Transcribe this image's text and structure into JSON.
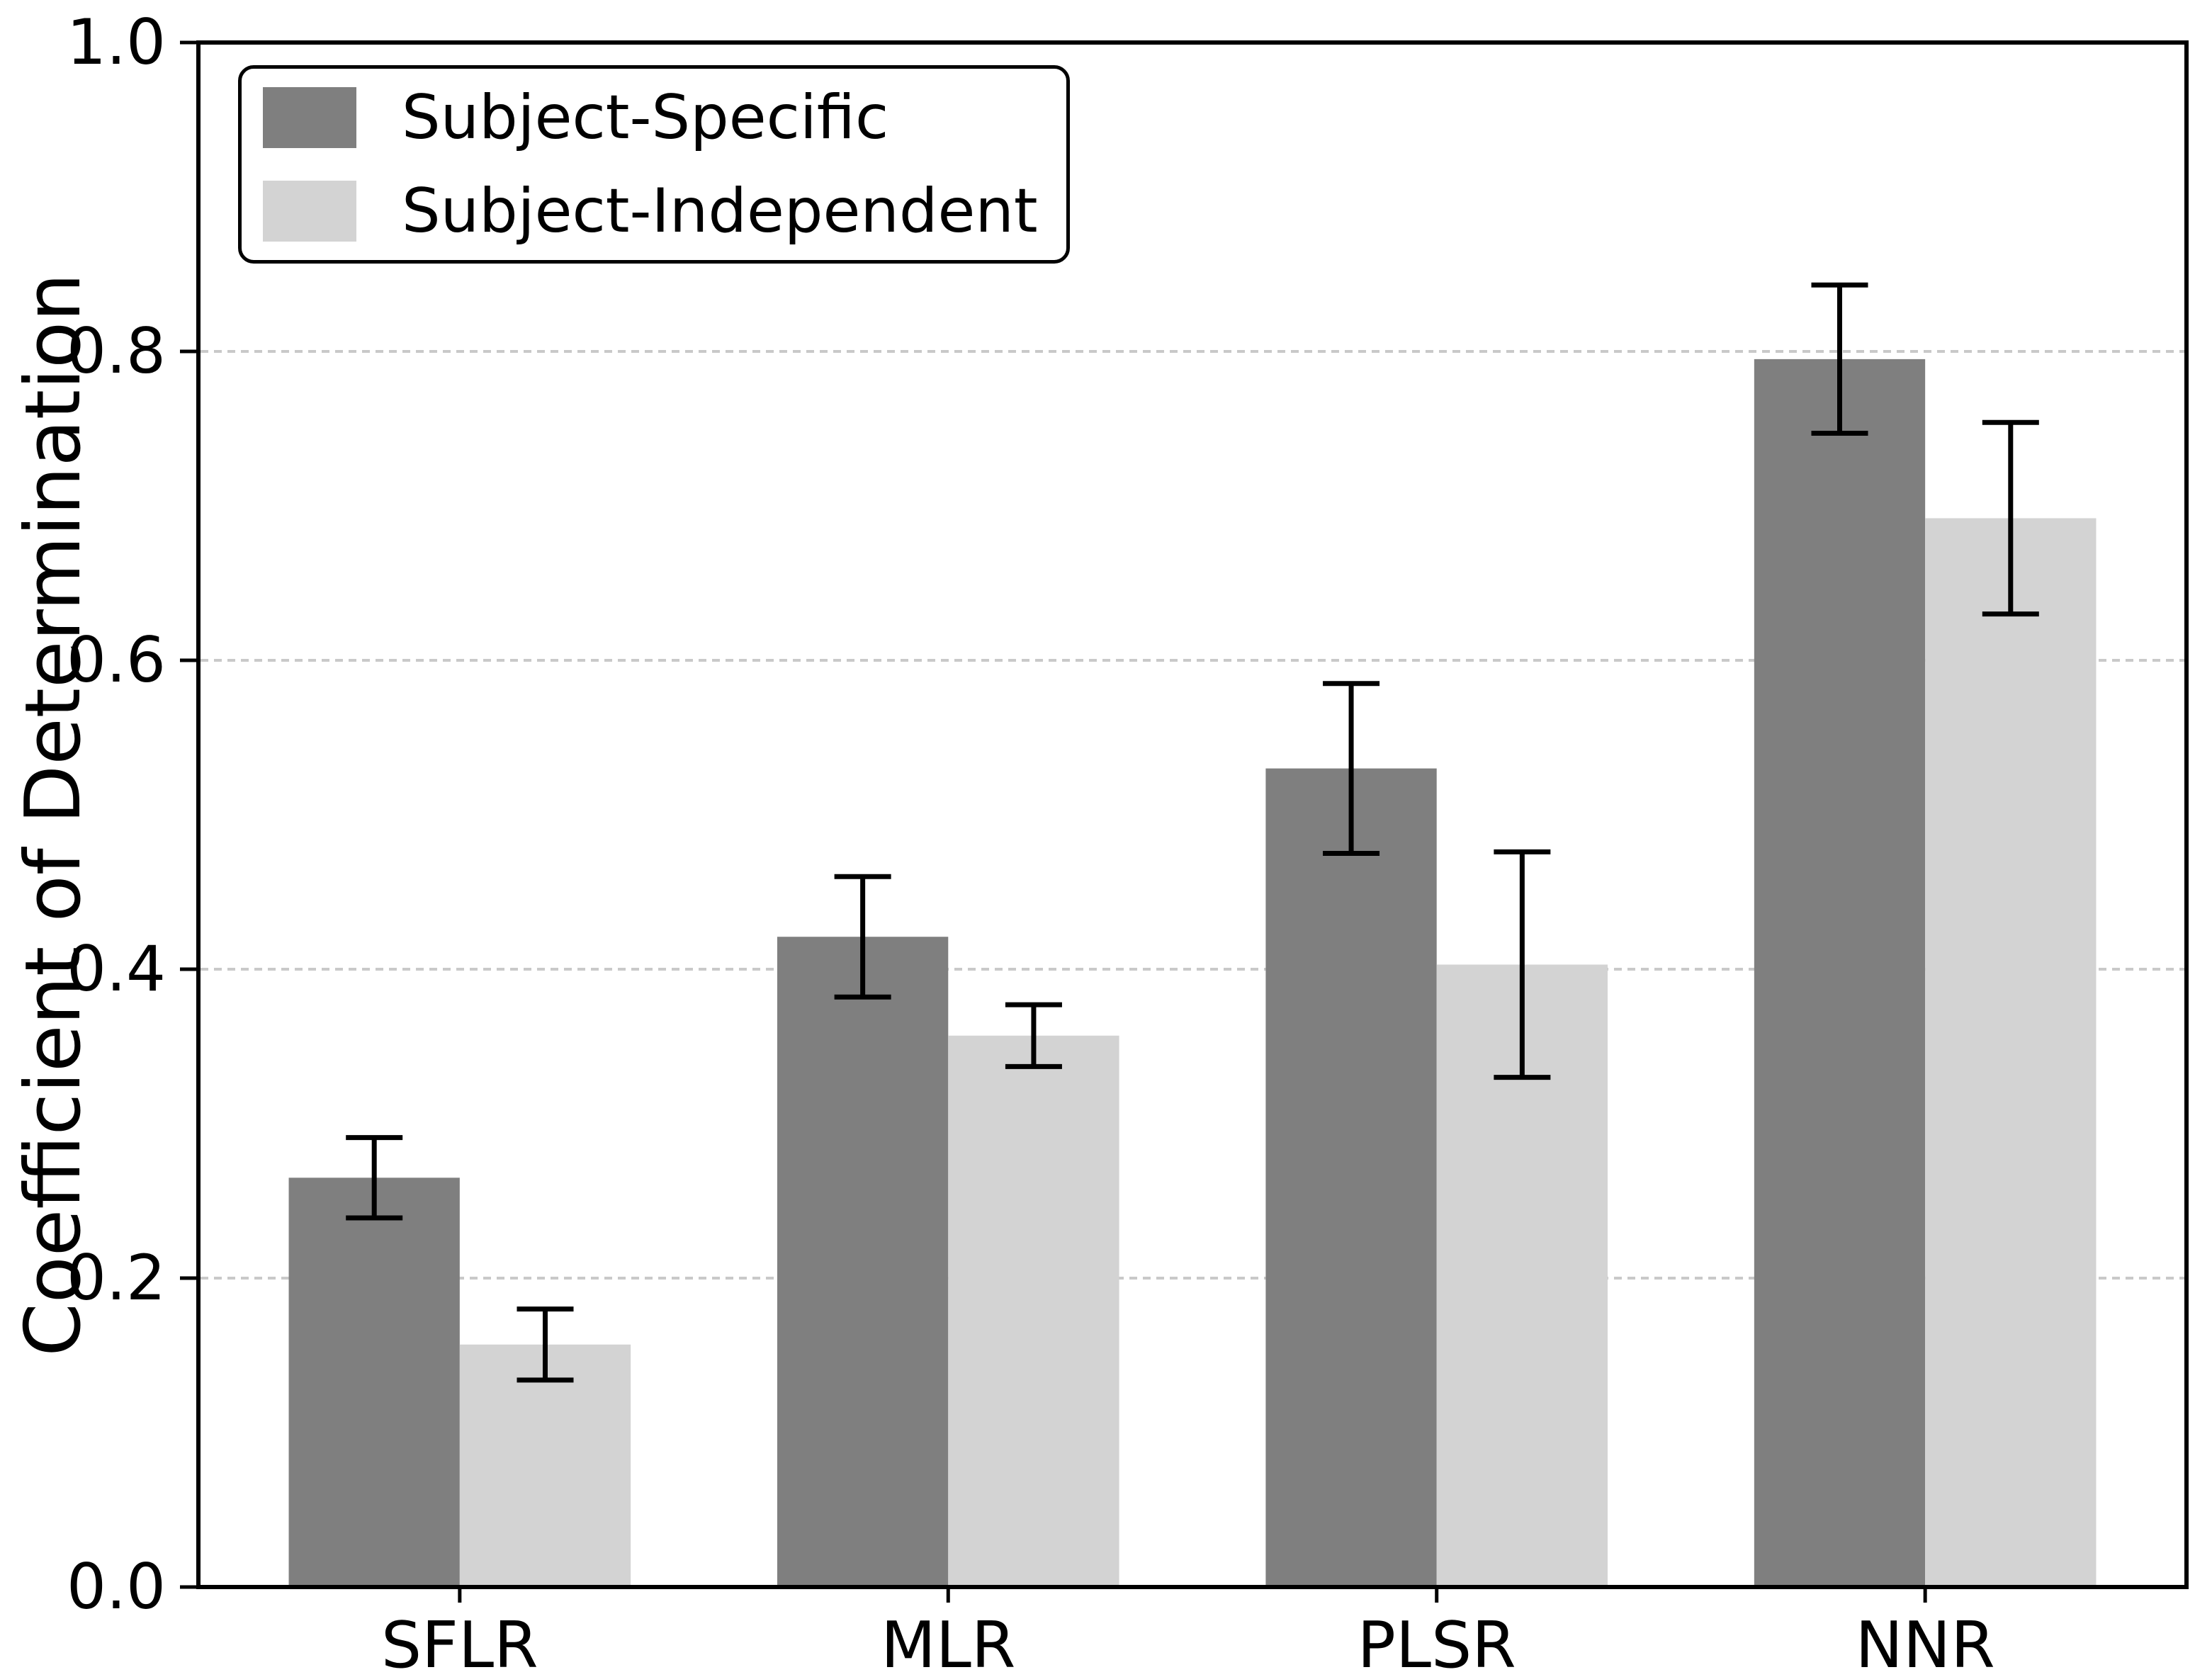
{
  "chart_data": {
    "type": "bar",
    "title": "",
    "xlabel": "",
    "ylabel": "Coefficient of Determination",
    "categories": [
      "SFLR",
      "MLR",
      "PLSR",
      "NNR"
    ],
    "series": [
      {
        "name": "Subject-Specific",
        "color": "#7f7f7f",
        "values": [
          0.265,
          0.421,
          0.53,
          0.795
        ],
        "errors": [
          0.026,
          0.039,
          0.055,
          0.048
        ]
      },
      {
        "name": "Subject-Independent",
        "color": "#d3d3d3",
        "values": [
          0.157,
          0.357,
          0.403,
          0.692
        ],
        "errors": [
          0.023,
          0.02,
          0.073,
          0.062
        ]
      }
    ],
    "ylim": [
      0.0,
      1.0
    ],
    "yticks": [
      0.0,
      0.2,
      0.4,
      0.6,
      0.8,
      1.0
    ],
    "ytick_labels": [
      "0.0",
      "0.2",
      "0.4",
      "0.6",
      "0.8",
      "1.0"
    ],
    "grid": {
      "axis": "y",
      "at": [
        0.2,
        0.4,
        0.6,
        0.8
      ],
      "style": "dashed",
      "color": "#c9c9c9"
    },
    "legend_position": "upper-left",
    "error_bar_color": "#000000",
    "frame_color": "#000000",
    "background_color": "#ffffff"
  }
}
